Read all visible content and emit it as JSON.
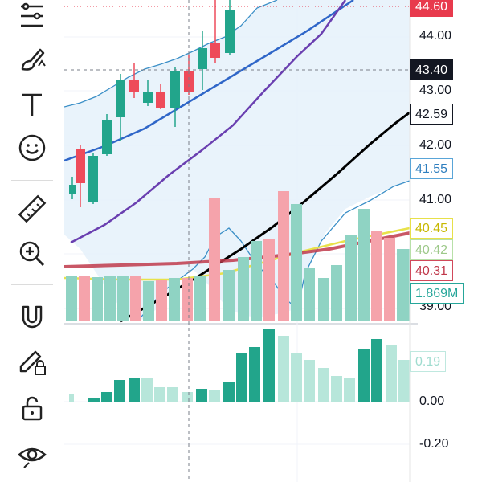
{
  "toolbar": {
    "tools": [
      {
        "name": "indicators-icon"
      },
      {
        "name": "brush-icon"
      },
      {
        "name": "text-tool-icon"
      },
      {
        "name": "emoji-icon"
      },
      {
        "name": "ruler-icon"
      },
      {
        "name": "zoom-in-icon"
      },
      {
        "name": "magnet-icon"
      },
      {
        "name": "lock-drawing-icon"
      },
      {
        "name": "unlock-icon"
      },
      {
        "name": "eye-icon"
      }
    ]
  },
  "price_axis": {
    "ticks": [
      "44.00",
      "43.00",
      "42.00",
      "41.00",
      "39.00"
    ]
  },
  "price_labels": [
    {
      "text": "44.60",
      "bg": "#e83a4d",
      "fg": "#ffffff",
      "border": "#e83a4d"
    },
    {
      "text": "43.40",
      "bg": "#131722",
      "fg": "#ffffff",
      "border": "#131722"
    },
    {
      "text": "42.59",
      "bg": "#ffffff",
      "fg": "#131722",
      "border": "#131722"
    },
    {
      "text": "41.55",
      "bg": "#ffffff",
      "fg": "#2f7fbf",
      "border": "#59a5d8"
    },
    {
      "text": "40.45",
      "bg": "#ffffff",
      "fg": "#c7b800",
      "border": "#e7e04a"
    },
    {
      "text": "40.42",
      "bg": "#ffffff",
      "fg": "#9ec98a",
      "border": "#b8e0a8"
    },
    {
      "text": "40.31",
      "bg": "#ffffff",
      "fg": "#c0394b",
      "border": "#d1495b"
    },
    {
      "text": "1.869M",
      "bg": "#ffffff",
      "fg": "#26a69a",
      "border": "#26a69a"
    }
  ],
  "histogram_axis": {
    "ticks": [
      "0.00",
      "-0.20"
    ],
    "current": {
      "text": "0.19",
      "fg": "#9fdccf",
      "border": "#bfe8df"
    }
  },
  "colors": {
    "up": "#22a58b",
    "down": "#ee4b5a",
    "bb_line": "#3b8fc7",
    "bb_fill": "#e7f2fb",
    "ma_blue": "#2f66c8",
    "ma_purple": "#6a3fb0",
    "ma_black": "#000000",
    "ma_red": "#c0394b",
    "ma_yellow": "#e8e24a"
  }
}
